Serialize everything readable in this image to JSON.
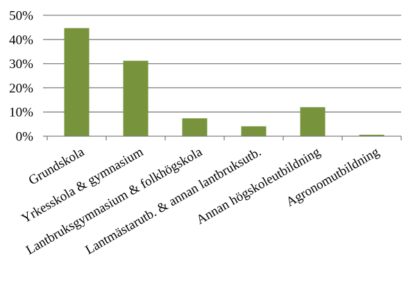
{
  "chart_data": {
    "type": "bar",
    "categories": [
      "Grundskola",
      "Yrkesskola & gymnasium",
      "Lantbruksgymnasium & folkhögskola",
      "Lantmästarutb. & annan lantbruksutb.",
      "Annan högskoleutbildning",
      "Agronomutbildning"
    ],
    "values": [
      44.7,
      31.2,
      7.4,
      4.1,
      12.0,
      0.6
    ],
    "ylim": [
      0,
      50
    ],
    "yticks": [
      0,
      10,
      20,
      30,
      40,
      50
    ],
    "ytick_labels": [
      "0%",
      "10%",
      "20%",
      "30%",
      "40%",
      "50%"
    ],
    "grid": true,
    "title": "",
    "xlabel": "",
    "ylabel": "",
    "colors": {
      "bar": "#77933c",
      "grid": "#7f7f7f"
    }
  }
}
